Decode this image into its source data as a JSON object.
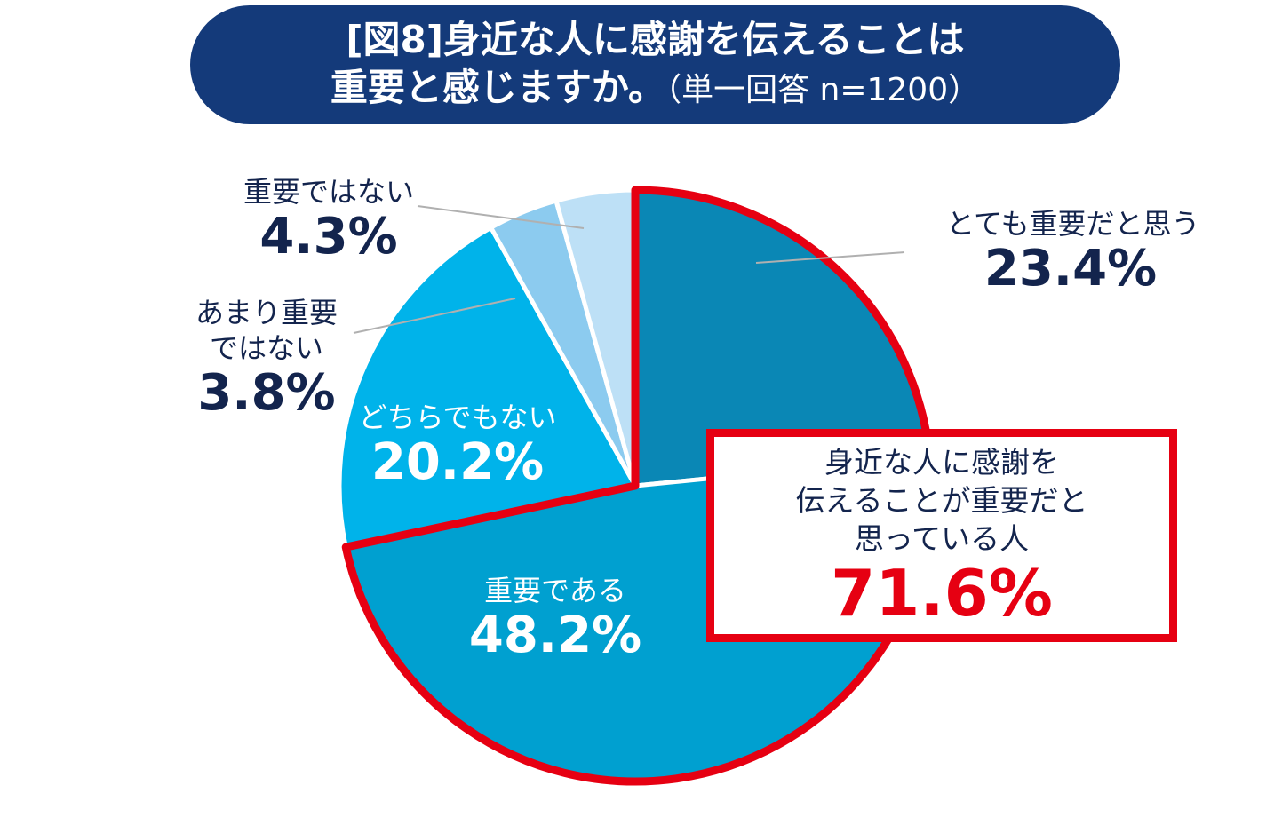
{
  "title": {
    "line1": "[図8]身近な人に感謝を伝えることは",
    "line2_main": "重要と感じますか。",
    "line2_sub": "（単一回答 n=1200）"
  },
  "chart_data": {
    "type": "pie",
    "title": "[図8]身近な人に感謝を伝えることは重要と感じますか。（単一回答 n=1200）",
    "slices": [
      {
        "label": "とても重要だと思う",
        "value": 23.4,
        "value_label": "23.4%",
        "color": "#0a87b5"
      },
      {
        "label": "重要である",
        "value": 48.2,
        "value_label": "48.2%",
        "color": "#00a0d0"
      },
      {
        "label": "どちらでもない",
        "value": 20.2,
        "value_label": "20.2%",
        "color": "#00b3ea"
      },
      {
        "label": "あまり重要ではない",
        "value": 3.8,
        "value_label": "3.8%",
        "color": "#8ccbef"
      },
      {
        "label": "重要ではない",
        "value": 4.3,
        "value_label": "4.3%",
        "color": "#bde0f6"
      }
    ],
    "highlight": {
      "text_line1": "身近な人に感謝を",
      "text_line2": "伝えることが重要だと",
      "text_line3": "思っている人",
      "value": 71.6,
      "value_label": "71.6%",
      "color": "#e60012"
    }
  },
  "labels": {
    "very_important_cat": "とても重要だと思う",
    "important_cat": "重要である",
    "neutral_cat": "どちらでもない",
    "not_very_cat_line1": "あまり重要",
    "not_very_cat_line2": "ではない",
    "not_important_cat": "重要ではない"
  }
}
